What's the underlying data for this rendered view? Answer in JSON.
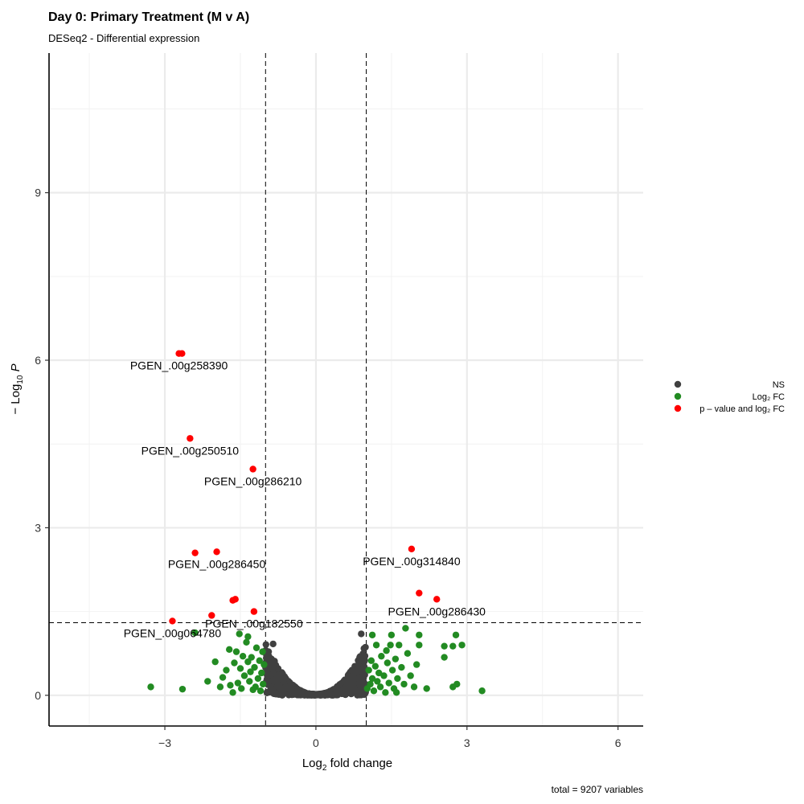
{
  "chart_data": {
    "type": "scatter",
    "title": "Day 0: Primary Treatment (M v A)",
    "subtitle": "DESeq2 - Differential expression",
    "xlabel": "Log2 fold change",
    "ylabel": "-Log10 P",
    "caption": "total = 9207 variables",
    "xlim": [
      -5.3,
      6.5
    ],
    "ylim": [
      -0.55,
      11.5
    ],
    "x_ticks": [
      -3,
      0,
      3,
      6
    ],
    "y_ticks": [
      0,
      3,
      6,
      9
    ],
    "fc_cutoff": [
      -1,
      1
    ],
    "p_cutoff": 1.3,
    "grid": true,
    "legend_position": "right",
    "colors": {
      "NS": "#404040",
      "Log2 FC": "#228B22",
      "p-value and log2 FC": "#FF0000"
    },
    "legend": [
      {
        "key": "NS",
        "label": "NS",
        "color": "#404040"
      },
      {
        "key": "Log2 FC",
        "label": "Log₂ FC",
        "color": "#228B22"
      },
      {
        "key": "p-value and log2 FC",
        "label": "p – value and log₂ FC",
        "color": "#FF0000"
      }
    ],
    "series": [
      {
        "name": "p-value and log2 FC",
        "points": [
          {
            "x": -2.72,
            "y": 6.12,
            "label": "PGEN_.00g258390"
          },
          {
            "x": -2.66,
            "y": 6.12
          },
          {
            "x": -2.5,
            "y": 4.6,
            "label": "PGEN_.00g250510"
          },
          {
            "x": -1.25,
            "y": 4.05,
            "label": "PGEN_.00g286210"
          },
          {
            "x": -2.4,
            "y": 2.55
          },
          {
            "x": -1.97,
            "y": 2.57,
            "label": "PGEN_.00g286450"
          },
          {
            "x": -1.65,
            "y": 1.7
          },
          {
            "x": -1.6,
            "y": 1.72
          },
          {
            "x": -1.23,
            "y": 1.5,
            "label": "PGEN_.00g182550"
          },
          {
            "x": -2.07,
            "y": 1.43
          },
          {
            "x": -2.85,
            "y": 1.33,
            "label": "PGEN_.00g064780"
          },
          {
            "x": 1.9,
            "y": 2.62,
            "label": "PGEN_.00g314840"
          },
          {
            "x": 2.05,
            "y": 1.83
          },
          {
            "x": 2.4,
            "y": 1.72,
            "label": "PGEN_.00g286430"
          }
        ]
      },
      {
        "name": "Log2 FC",
        "points": [
          {
            "x": -3.28,
            "y": 0.15
          },
          {
            "x": -2.65,
            "y": 0.11
          },
          {
            "x": -2.4,
            "y": 1.12
          },
          {
            "x": -2.0,
            "y": 0.6
          },
          {
            "x": -1.85,
            "y": 0.32
          },
          {
            "x": -1.78,
            "y": 0.45
          },
          {
            "x": -1.7,
            "y": 0.18
          },
          {
            "x": -1.62,
            "y": 0.58
          },
          {
            "x": -1.58,
            "y": 0.78
          },
          {
            "x": -1.52,
            "y": 1.1
          },
          {
            "x": -1.48,
            "y": 0.12
          },
          {
            "x": -1.42,
            "y": 0.35
          },
          {
            "x": -1.38,
            "y": 0.95
          },
          {
            "x": -1.35,
            "y": 1.05
          },
          {
            "x": -1.32,
            "y": 0.25
          },
          {
            "x": -1.28,
            "y": 0.68
          },
          {
            "x": -1.25,
            "y": 0.1
          },
          {
            "x": -1.22,
            "y": 0.5
          },
          {
            "x": -1.18,
            "y": 0.85
          },
          {
            "x": -1.15,
            "y": 0.3
          },
          {
            "x": -1.12,
            "y": 0.62
          },
          {
            "x": -1.1,
            "y": 0.08
          },
          {
            "x": -1.08,
            "y": 0.4
          },
          {
            "x": -1.05,
            "y": 0.2
          },
          {
            "x": -1.03,
            "y": 0.55
          },
          {
            "x": -1.45,
            "y": 0.7
          },
          {
            "x": -1.55,
            "y": 0.22
          },
          {
            "x": -1.9,
            "y": 0.15
          },
          {
            "x": -2.15,
            "y": 0.25
          },
          {
            "x": -1.72,
            "y": 0.82
          },
          {
            "x": -1.65,
            "y": 0.05
          },
          {
            "x": -1.3,
            "y": 0.42
          },
          {
            "x": -1.2,
            "y": 0.15
          },
          {
            "x": -1.06,
            "y": 0.78
          },
          {
            "x": -1.35,
            "y": 0.6
          },
          {
            "x": -1.5,
            "y": 0.48
          },
          {
            "x": 1.02,
            "y": 0.12
          },
          {
            "x": 1.05,
            "y": 0.45
          },
          {
            "x": 1.08,
            "y": 0.2
          },
          {
            "x": 1.1,
            "y": 0.62
          },
          {
            "x": 1.12,
            "y": 0.3
          },
          {
            "x": 1.15,
            "y": 0.08
          },
          {
            "x": 1.18,
            "y": 0.52
          },
          {
            "x": 1.2,
            "y": 0.9
          },
          {
            "x": 1.22,
            "y": 0.25
          },
          {
            "x": 1.25,
            "y": 0.4
          },
          {
            "x": 1.28,
            "y": 0.15
          },
          {
            "x": 1.3,
            "y": 0.7
          },
          {
            "x": 1.35,
            "y": 0.35
          },
          {
            "x": 1.38,
            "y": 0.05
          },
          {
            "x": 1.42,
            "y": 0.58
          },
          {
            "x": 1.45,
            "y": 0.22
          },
          {
            "x": 1.48,
            "y": 0.9
          },
          {
            "x": 1.52,
            "y": 0.45
          },
          {
            "x": 1.55,
            "y": 0.12
          },
          {
            "x": 1.58,
            "y": 0.65
          },
          {
            "x": 1.62,
            "y": 0.3
          },
          {
            "x": 1.65,
            "y": 0.9
          },
          {
            "x": 1.7,
            "y": 0.5
          },
          {
            "x": 1.75,
            "y": 0.2
          },
          {
            "x": 1.78,
            "y": 1.2
          },
          {
            "x": 1.82,
            "y": 0.75
          },
          {
            "x": 1.88,
            "y": 0.35
          },
          {
            "x": 1.95,
            "y": 0.15
          },
          {
            "x": 2.0,
            "y": 0.55
          },
          {
            "x": 2.05,
            "y": 0.9
          },
          {
            "x": 2.05,
            "y": 1.08
          },
          {
            "x": 1.12,
            "y": 1.08
          },
          {
            "x": 1.5,
            "y": 1.08
          },
          {
            "x": 2.2,
            "y": 0.12
          },
          {
            "x": 2.55,
            "y": 0.68
          },
          {
            "x": 2.55,
            "y": 0.88
          },
          {
            "x": 2.72,
            "y": 0.88
          },
          {
            "x": 2.72,
            "y": 0.15
          },
          {
            "x": 2.78,
            "y": 1.08
          },
          {
            "x": 2.9,
            "y": 0.9
          },
          {
            "x": 2.8,
            "y": 0.2
          },
          {
            "x": 3.3,
            "y": 0.08
          },
          {
            "x": 1.4,
            "y": 0.8
          },
          {
            "x": 1.6,
            "y": 0.05
          }
        ]
      }
    ]
  }
}
